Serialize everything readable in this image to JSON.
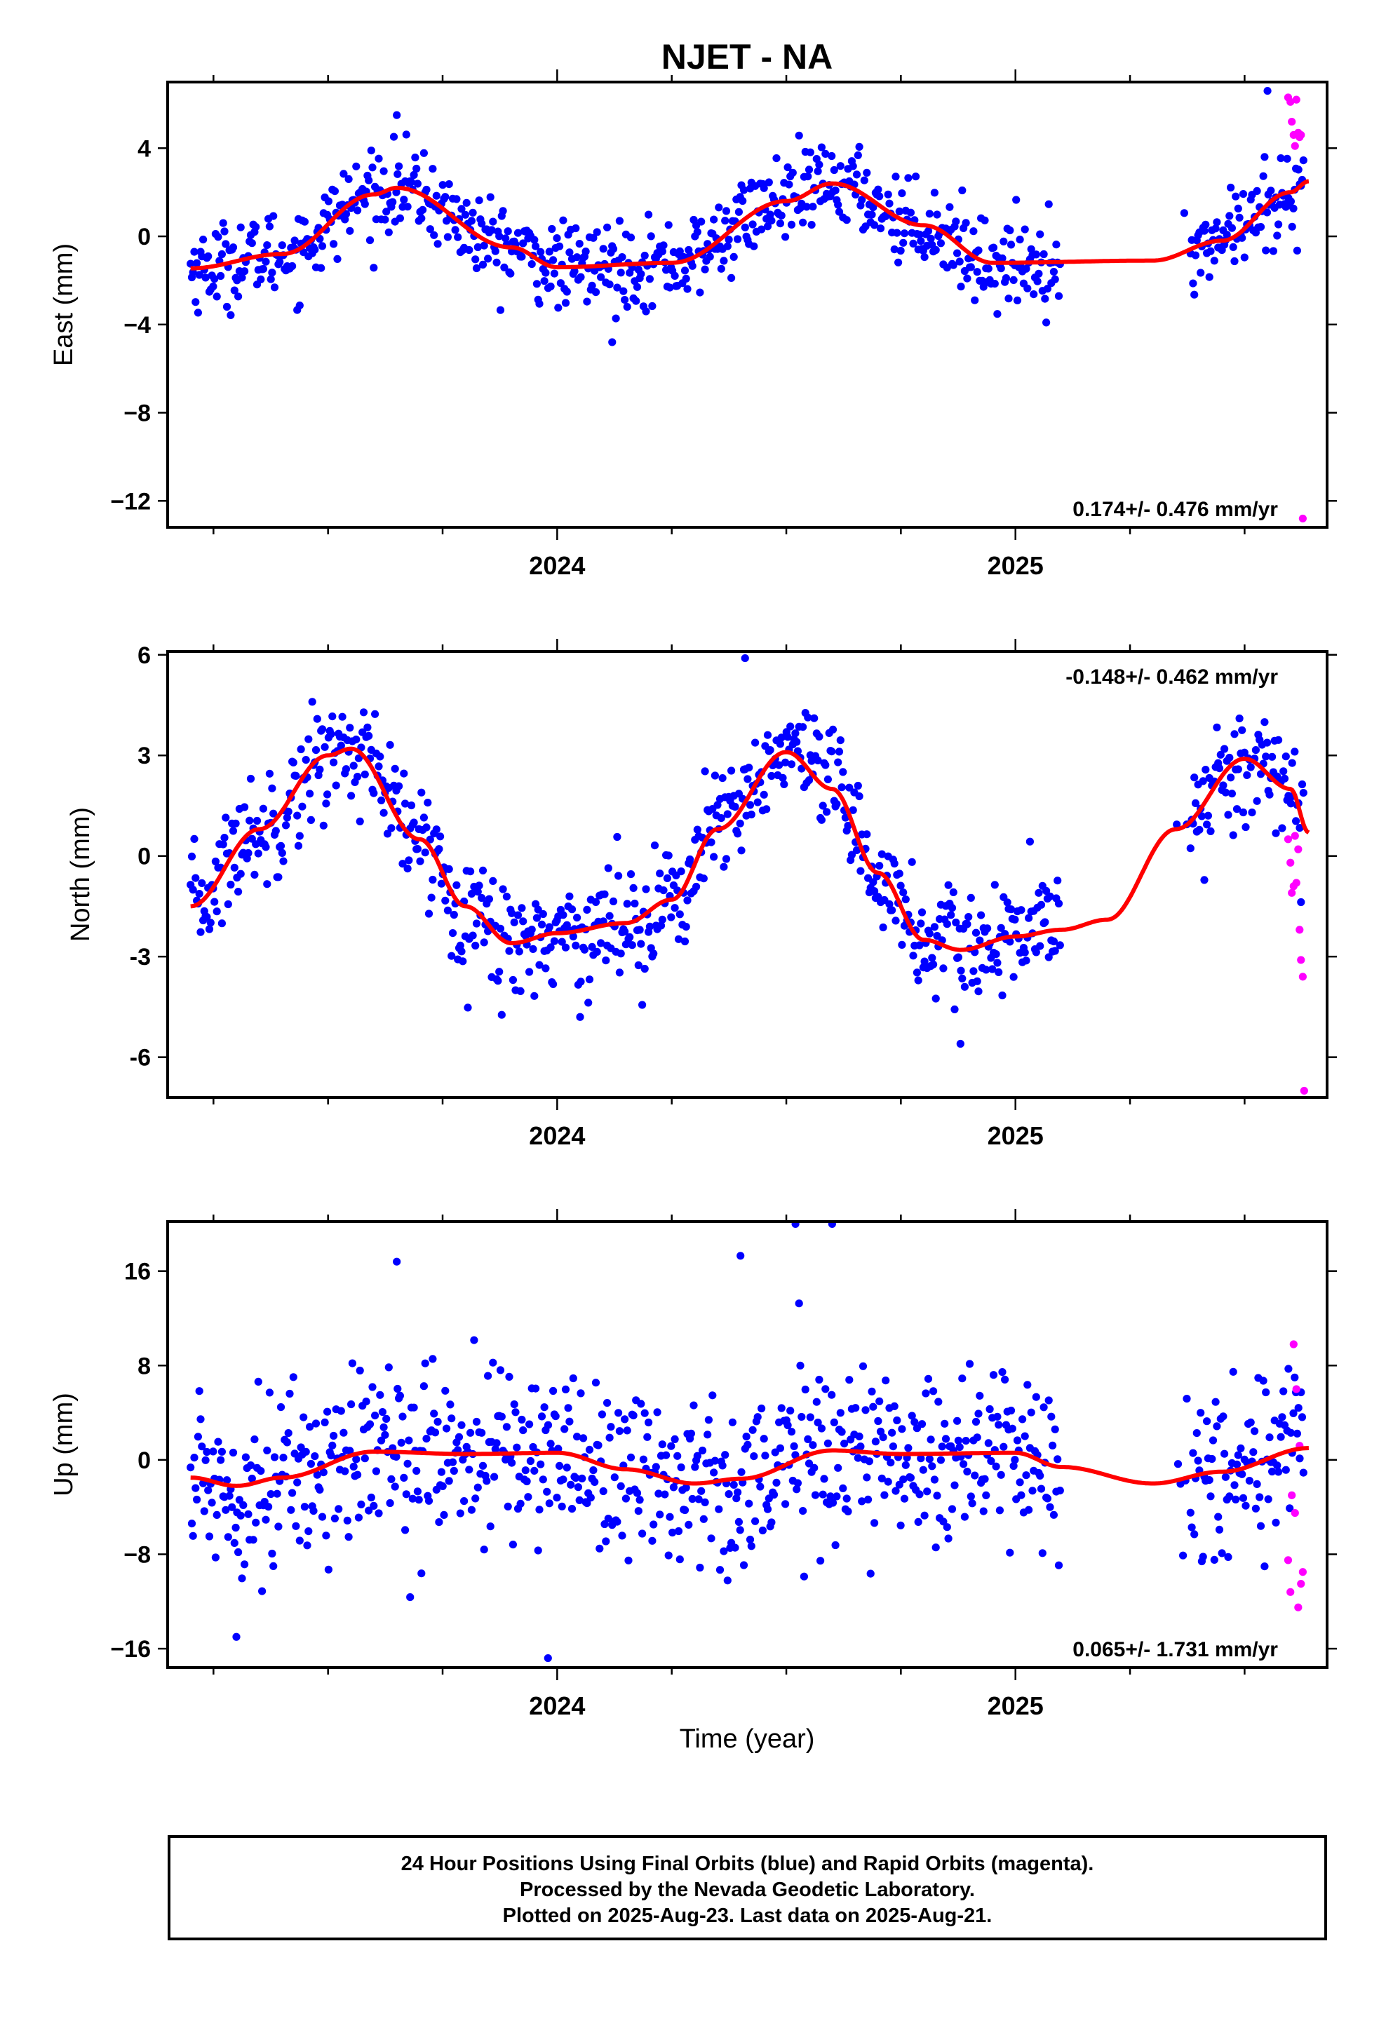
{
  "colors": {
    "final": "#0000ff",
    "rapid": "#ff00ff",
    "model": "#ff0000"
  },
  "figure": {
    "title": "NJET - NA",
    "xlabel": "Time (year)"
  },
  "footer": {
    "line1": "24 Hour Positions Using Final Orbits (blue) and Rapid Orbits (magenta).",
    "line2": "Processed by the Nevada Geodetic Laboratory.",
    "line3": "Plotted on 2025-Aug-23. Last data on 2025-Aug-21."
  },
  "chart_data": [
    {
      "type": "scatter",
      "component": "east",
      "ylabel": "East (mm)",
      "rate_label": "0.174+/- 0.476 mm/yr",
      "rate_position": "bottom-right",
      "xlim": [
        2023.15,
        2025.68
      ],
      "ylim": [
        -13.2,
        7.0
      ],
      "yticks": [
        4,
        0,
        -4,
        -8,
        -12
      ],
      "ytick_labels": [
        "4",
        "0",
        "−4",
        "−8",
        "−12"
      ],
      "xticks_major": [
        2024,
        2025
      ],
      "xtick_labels": [
        "2024",
        "2025"
      ],
      "model": {
        "mean": 0.3,
        "amplitude": 1.85,
        "peak": 0.62,
        "envelope": 1.0,
        "gap_model": [
          2025.08,
          2025.34,
          -1.1
        ],
        "curve": [
          [
            2023.2,
            -1.45
          ],
          [
            2023.4,
            -0.8
          ],
          [
            2023.6,
            1.9
          ],
          [
            2023.65,
            2.2
          ],
          [
            2023.9,
            -0.5
          ],
          [
            2024.0,
            -1.4
          ],
          [
            2024.25,
            -1.2
          ],
          [
            2024.5,
            1.6
          ],
          [
            2024.6,
            2.4
          ],
          [
            2024.8,
            0.5
          ],
          [
            2024.95,
            -1.2
          ],
          [
            2025.3,
            -1.1
          ],
          [
            2025.45,
            -0.2
          ],
          [
            2025.6,
            2.0
          ],
          [
            2025.64,
            2.5
          ]
        ]
      },
      "noise_sd": 0.95,
      "series": [
        {
          "name": "Final Orbits",
          "color": "blue",
          "x_range": [
            2023.2,
            2025.63
          ],
          "gaps": [
            [
              2025.1,
              2025.35
            ]
          ]
        },
        {
          "name": "Rapid Orbits",
          "color": "magenta",
          "points": [
            [
              2025.595,
              6.3
            ],
            [
              2025.6,
              6.1
            ],
            [
              2025.603,
              5.2
            ],
            [
              2025.607,
              4.6
            ],
            [
              2025.61,
              4.1
            ],
            [
              2025.613,
              6.2
            ],
            [
              2025.617,
              4.7
            ],
            [
              2025.62,
              4.5
            ],
            [
              2025.623,
              4.6
            ],
            [
              2025.627,
              -12.8
            ]
          ]
        }
      ],
      "outliers": [
        [
          2025.55,
          6.6
        ],
        [
          2024.12,
          -4.8
        ],
        [
          2023.65,
          5.5
        ]
      ]
    },
    {
      "type": "scatter",
      "component": "north",
      "ylabel": "North (mm)",
      "rate_label": "-0.148+/- 0.462 mm/yr",
      "rate_position": "top-right",
      "xlim": [
        2023.15,
        2025.68
      ],
      "ylim": [
        -7.2,
        6.1
      ],
      "yticks": [
        6,
        3,
        0,
        -3,
        -6
      ],
      "ytick_labels": [
        "6",
        "3",
        "0",
        "-3",
        "-6"
      ],
      "xticks_major": [
        2024,
        2025
      ],
      "xtick_labels": [
        "2024",
        "2025"
      ],
      "model": {
        "curve": [
          [
            2023.2,
            -1.5
          ],
          [
            2023.35,
            0.8
          ],
          [
            2023.5,
            3.0
          ],
          [
            2023.55,
            3.2
          ],
          [
            2023.7,
            0.5
          ],
          [
            2023.8,
            -1.5
          ],
          [
            2023.9,
            -2.6
          ],
          [
            2024.0,
            -2.3
          ],
          [
            2024.15,
            -2.0
          ],
          [
            2024.25,
            -1.3
          ],
          [
            2024.35,
            0.8
          ],
          [
            2024.5,
            3.1
          ],
          [
            2024.6,
            2.0
          ],
          [
            2024.7,
            -0.5
          ],
          [
            2024.8,
            -2.5
          ],
          [
            2024.88,
            -2.8
          ],
          [
            2025.0,
            -2.4
          ],
          [
            2025.1,
            -2.2
          ],
          [
            2025.2,
            -1.9
          ],
          [
            2025.35,
            0.8
          ],
          [
            2025.5,
            2.9
          ],
          [
            2025.6,
            2.0
          ],
          [
            2025.64,
            0.7
          ]
        ]
      },
      "noise_sd": 0.85,
      "series": [
        {
          "name": "Final Orbits",
          "color": "blue",
          "x_range": [
            2023.2,
            2025.63
          ],
          "gaps": [
            [
              2025.1,
              2025.35
            ]
          ]
        },
        {
          "name": "Rapid Orbits",
          "color": "magenta",
          "points": [
            [
              2025.595,
              0.5
            ],
            [
              2025.6,
              -0.2
            ],
            [
              2025.603,
              -1.1
            ],
            [
              2025.607,
              -0.9
            ],
            [
              2025.61,
              0.6
            ],
            [
              2025.613,
              -0.8
            ],
            [
              2025.617,
              0.2
            ],
            [
              2025.62,
              -2.2
            ],
            [
              2025.623,
              -3.1
            ],
            [
              2025.627,
              -3.6
            ],
            [
              2025.63,
              -7.0
            ]
          ]
        }
      ],
      "outliers": [
        [
          2024.41,
          5.9
        ],
        [
          2024.88,
          -5.6
        ],
        [
          2024.05,
          -4.8
        ]
      ]
    },
    {
      "type": "scatter",
      "component": "up",
      "ylabel": "Up (mm)",
      "rate_label": "0.065+/- 1.731 mm/yr",
      "rate_position": "bottom-right",
      "xlim": [
        2023.15,
        2025.68
      ],
      "ylim": [
        -17.6,
        20.2
      ],
      "yticks": [
        16,
        8,
        0,
        -8,
        -16
      ],
      "ytick_labels": [
        "16",
        "8",
        "0",
        "−8",
        "−16"
      ],
      "xticks_major": [
        2024,
        2025
      ],
      "xtick_labels": [
        "2024",
        "2025"
      ],
      "model": {
        "curve": [
          [
            2023.2,
            -1.5
          ],
          [
            2023.3,
            -2.2
          ],
          [
            2023.4,
            -1.5
          ],
          [
            2023.6,
            0.7
          ],
          [
            2023.8,
            0.5
          ],
          [
            2024.0,
            0.6
          ],
          [
            2024.15,
            -0.8
          ],
          [
            2024.3,
            -2.0
          ],
          [
            2024.4,
            -1.6
          ],
          [
            2024.6,
            0.8
          ],
          [
            2024.75,
            0.5
          ],
          [
            2025.0,
            0.6
          ],
          [
            2025.1,
            -0.6
          ],
          [
            2025.3,
            -2.0
          ],
          [
            2025.45,
            -1.0
          ],
          [
            2025.64,
            1.0
          ]
        ]
      },
      "noise_sd": 3.8,
      "series": [
        {
          "name": "Final Orbits",
          "color": "blue",
          "x_range": [
            2023.2,
            2025.63
          ],
          "gaps": [
            [
              2025.1,
              2025.35
            ]
          ]
        },
        {
          "name": "Rapid Orbits",
          "color": "magenta",
          "points": [
            [
              2025.595,
              -8.5
            ],
            [
              2025.6,
              -11.2
            ],
            [
              2025.603,
              -3.0
            ],
            [
              2025.607,
              9.8
            ],
            [
              2025.61,
              -4.5
            ],
            [
              2025.613,
              6.0
            ],
            [
              2025.617,
              -12.5
            ],
            [
              2025.62,
              1.2
            ],
            [
              2025.623,
              -10.5
            ],
            [
              2025.627,
              -9.5
            ]
          ]
        }
      ],
      "outliers": [
        [
          2024.52,
          20.0
        ],
        [
          2024.6,
          20.0
        ],
        [
          2024.4,
          17.3
        ],
        [
          2023.65,
          16.8
        ],
        [
          2023.98,
          -16.8
        ],
        [
          2023.3,
          -15.0
        ]
      ]
    }
  ]
}
